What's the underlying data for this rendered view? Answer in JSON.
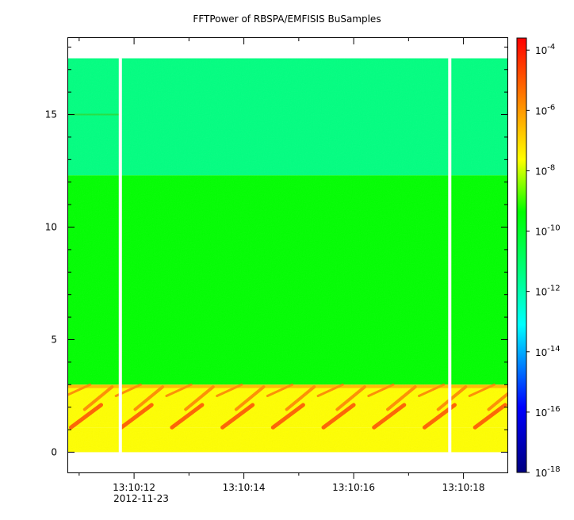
{
  "chart_data": {
    "type": "heatmap",
    "title": "FFTPower of RBSPA/EMFISIS  BuSamples",
    "xlabel": "",
    "ylabel": "",
    "x_ticks": [
      "13:10:12",
      "13:10:14",
      "13:10:16",
      "13:10:18"
    ],
    "x_tick_values": [
      12,
      14,
      16,
      18
    ],
    "x_date_label": "2012-11-23",
    "xlim": [
      10.8,
      18.8
    ],
    "y_ticks": [
      "0",
      "5",
      "10",
      "15"
    ],
    "y_tick_values": [
      0,
      5,
      10,
      15
    ],
    "ylim": [
      -0.9,
      18.4
    ],
    "colorbar": {
      "scale": "log",
      "range_exponents": [
        -18,
        -3.6
      ],
      "tick_exponents": [
        -4,
        -6,
        -8,
        -10,
        -12,
        -14,
        -16,
        -18
      ],
      "tick_base": "10",
      "colors": [
        "#000080",
        "#0000ff",
        "#00ffff",
        "#00ff80",
        "#00ff00",
        "#ffff00",
        "#ffa500",
        "#ff0000"
      ]
    },
    "data_gaps_x": [
      11.75,
      17.75
    ],
    "data_extent": {
      "x": [
        10.8,
        18.8
      ],
      "y": [
        0,
        17.5
      ]
    },
    "bands": [
      {
        "y": [
          12.3,
          17.5
        ],
        "level_exponent": -11.5,
        "color": "#00ff80"
      },
      {
        "y": [
          3.0,
          12.3
        ],
        "level_exponent": -10.5,
        "color": "#00ff00"
      },
      {
        "y": [
          1.1,
          3.0
        ],
        "level_exponent": -8.5,
        "color": "#ffff00"
      },
      {
        "y": [
          0,
          1.1
        ],
        "level_exponent": -8.5,
        "color": "#ffff00"
      }
    ],
    "features": [
      {
        "x": [
          10.8,
          11.75
        ],
        "y": 15.0,
        "label": "narrow line"
      }
    ]
  }
}
